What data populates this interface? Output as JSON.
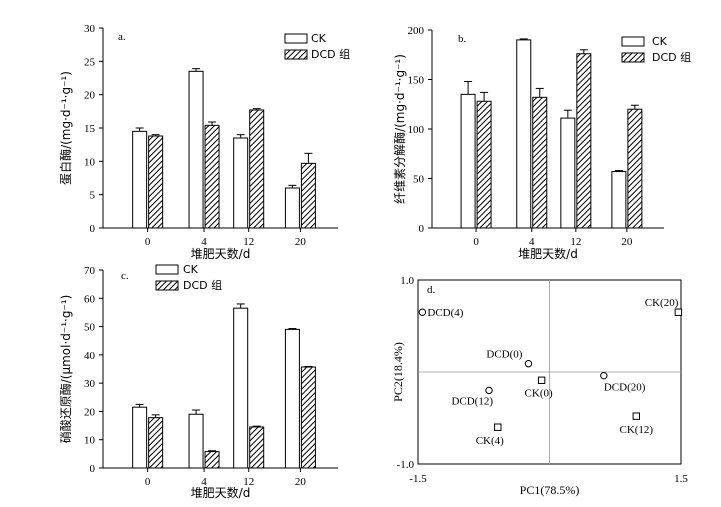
{
  "colors": {
    "bar_ck": "#ffffff",
    "bar_dcd": "hatch-black",
    "axis": "#000000",
    "pca_guide": "#999999"
  },
  "chart_data": [
    {
      "id": "a",
      "type": "bar",
      "panel_label": "a.",
      "categories": [
        "0",
        "4",
        "12",
        "20"
      ],
      "xlabel": "堆肥天数/d",
      "ylabel": "蛋白酶/(mg·d⁻¹·g⁻¹)",
      "ylim": [
        0,
        30
      ],
      "yticks": [
        "0",
        "5",
        "10",
        "15",
        "20",
        "25",
        "30"
      ],
      "series": [
        {
          "name": "CK",
          "values": [
            14.5,
            23.5,
            13.5,
            6.0
          ],
          "errors": [
            0.5,
            0.4,
            0.5,
            0.4
          ]
        },
        {
          "name": "DCD 组",
          "values": [
            13.8,
            15.4,
            17.7,
            9.7
          ],
          "errors": [
            0.2,
            0.5,
            0.2,
            1.5
          ]
        }
      ]
    },
    {
      "id": "b",
      "type": "bar",
      "panel_label": "b.",
      "categories": [
        "0",
        "4",
        "12",
        "20"
      ],
      "xlabel": "堆肥天数/d",
      "ylabel": "纤维素分解酶/(mg·d⁻¹·g⁻¹)",
      "ylim": [
        0,
        200
      ],
      "yticks": [
        "0",
        "50",
        "100",
        "150",
        "200"
      ],
      "series": [
        {
          "name": "CK",
          "values": [
            135,
            190,
            111,
            57
          ],
          "errors": [
            13,
            1,
            8,
            1
          ]
        },
        {
          "name": "DCD 组",
          "values": [
            128,
            132,
            176,
            120
          ],
          "errors": [
            9,
            9,
            4,
            4
          ]
        }
      ]
    },
    {
      "id": "c",
      "type": "bar",
      "panel_label": "c.",
      "categories": [
        "0",
        "4",
        "12",
        "20"
      ],
      "xlabel": "堆肥天数/d",
      "ylabel": "硝酸还原酶/(μmol·d⁻¹·g⁻¹)",
      "ylim": [
        0,
        70
      ],
      "yticks": [
        "0",
        "10",
        "20",
        "30",
        "40",
        "50",
        "60",
        "70"
      ],
      "series": [
        {
          "name": "CK",
          "values": [
            21.5,
            19.0,
            56.5,
            49.0
          ],
          "errors": [
            1.0,
            1.5,
            1.5,
            0.3
          ]
        },
        {
          "name": "DCD 组",
          "values": [
            17.8,
            5.8,
            14.5,
            35.7
          ],
          "errors": [
            1.0,
            0.3,
            0.3,
            0.2
          ]
        }
      ]
    },
    {
      "id": "d",
      "type": "scatter",
      "panel_label": "d.",
      "xlabel": "PC1(78.5%)",
      "ylabel": "PC2(18.4%)",
      "xlim": [
        -1.5,
        1.5
      ],
      "ylim": [
        -1.0,
        1.0
      ],
      "xticks": [
        "-1.5",
        "1.5"
      ],
      "yticks": [
        "-1.0",
        "1.0"
      ],
      "points": [
        {
          "label": "DCD(4)",
          "group": "DCD",
          "x": -1.45,
          "y": 0.65
        },
        {
          "label": "DCD(0)",
          "group": "DCD",
          "x": -0.24,
          "y": 0.09
        },
        {
          "label": "DCD(12)",
          "group": "DCD",
          "x": -0.69,
          "y": -0.2
        },
        {
          "label": "DCD(20)",
          "group": "DCD",
          "x": 0.62,
          "y": -0.04
        },
        {
          "label": "CK(20)",
          "group": "CK",
          "x": 1.47,
          "y": 0.65
        },
        {
          "label": "CK(0)",
          "group": "CK",
          "x": -0.09,
          "y": -0.09
        },
        {
          "label": "CK(4)",
          "group": "CK",
          "x": -0.59,
          "y": -0.6
        },
        {
          "label": "CK(12)",
          "group": "CK",
          "x": 0.99,
          "y": -0.48
        }
      ]
    }
  ]
}
